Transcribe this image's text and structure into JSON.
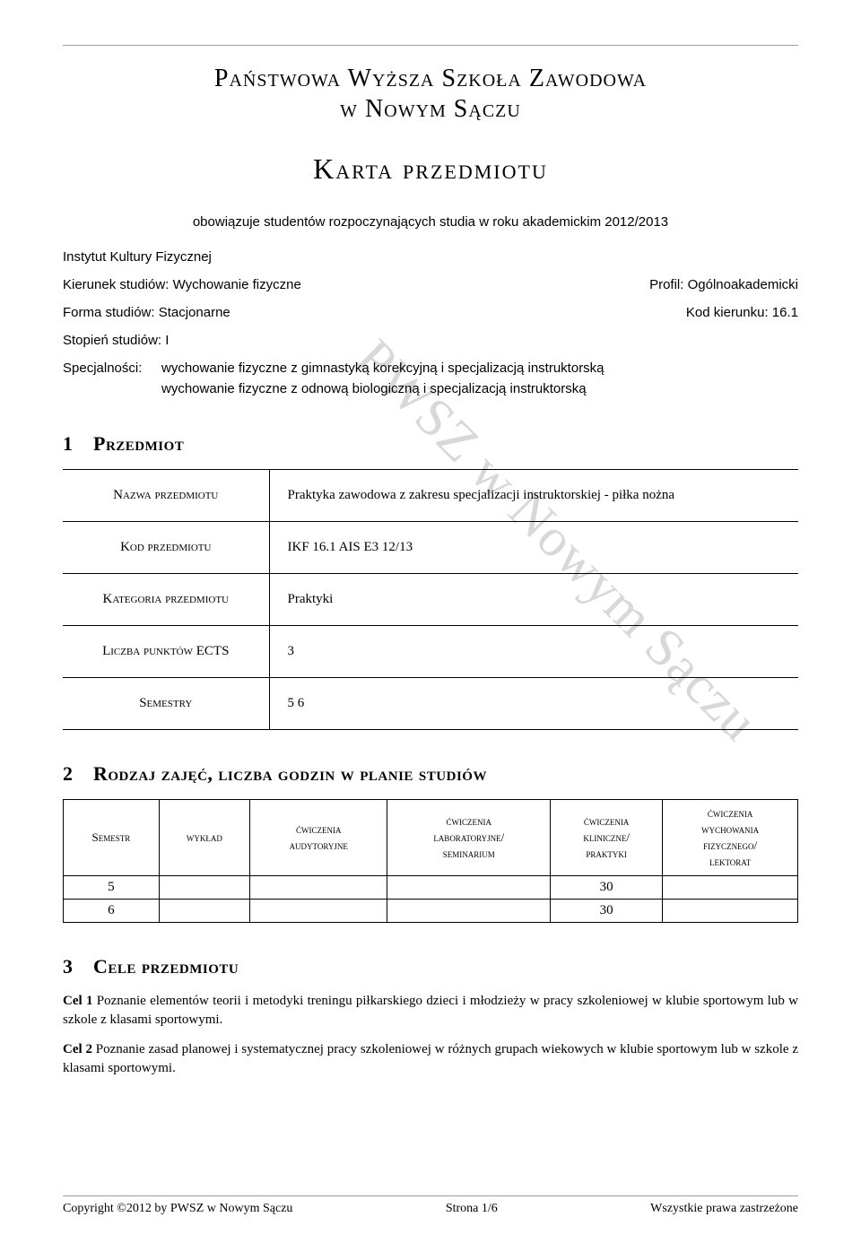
{
  "institution_line1": "Państwowa Wyższa Szkoła Zawodowa",
  "institution_line2": "w Nowym Sączu",
  "doc_title": "Karta przedmiotu",
  "applies_text": "obowiązuje studentów rozpoczynających studia w roku akademickim 2012/2013",
  "meta": {
    "institute": "Instytut Kultury Fizycznej",
    "kierunek_label": "Kierunek studiów: Wychowanie fizyczne",
    "profil": "Profil: Ogólnoakademicki",
    "forma": "Forma studiów: Stacjonarne",
    "kod_kierunku": "Kod kierunku: 16.1",
    "stopien": "Stopień studiów: I",
    "spec_label": "Specjalności:",
    "spec_lines": [
      "wychowanie fizyczne z gimnastyką korekcyjną i specjalizacją instruktorską",
      "wychowanie fizyczne z odnową biologiczną i specjalizacją instruktorską"
    ]
  },
  "section1": {
    "num": "1",
    "title": "Przedmiot",
    "rows": [
      {
        "label": "Nazwa przedmiotu",
        "value": "Praktyka zawodowa z zakresu specjalizacji instruktorskiej - piłka nożna"
      },
      {
        "label": "Kod przedmiotu",
        "value": "IKF 16.1 AIS E3 12/13"
      },
      {
        "label": "Kategoria przedmiotu",
        "value": "Praktyki"
      },
      {
        "label": "Liczba punktów ECTS",
        "value": "3"
      },
      {
        "label": "Semestry",
        "value": "5 6"
      }
    ]
  },
  "section2": {
    "num": "2",
    "title": "Rodzaj zajęć, liczba godzin w planie studiów",
    "headers": [
      "Semestr",
      "wykład",
      "ćwiczenia audytoryjne",
      "ćwiczenia laboratoryjne/ seminarium",
      "ćwiczenia kliniczne/ praktyki",
      "ćwiczenia wychowania fizycznego/ lektorat"
    ],
    "rows": [
      [
        "5",
        "",
        "",
        "",
        "30",
        ""
      ],
      [
        "6",
        "",
        "",
        "",
        "30",
        ""
      ]
    ]
  },
  "section3": {
    "num": "3",
    "title": "Cele przedmiotu",
    "goals": [
      {
        "label": "Cel 1",
        "text": "Poznanie elementów teorii i metodyki treningu piłkarskiego dzieci i młodzieży w pracy szkoleniowej w klubie sportowym lub w szkole z klasami sportowymi."
      },
      {
        "label": "Cel 2",
        "text": "Poznanie zasad planowej i systematycznej pracy szkoleniowej w różnych grupach wiekowych w klubie sportowym lub w szkole z klasami sportowymi."
      }
    ]
  },
  "watermark": "PWSZ w Nowym Sączu",
  "footer": {
    "left": "Copyright ©2012 by PWSZ w Nowym Sączu",
    "center": "Strona 1/6",
    "right": "Wszystkie prawa zastrzeżone"
  },
  "colors": {
    "text": "#000000",
    "rule": "#999999",
    "watermark": "#d8d8d8",
    "background": "#ffffff"
  }
}
